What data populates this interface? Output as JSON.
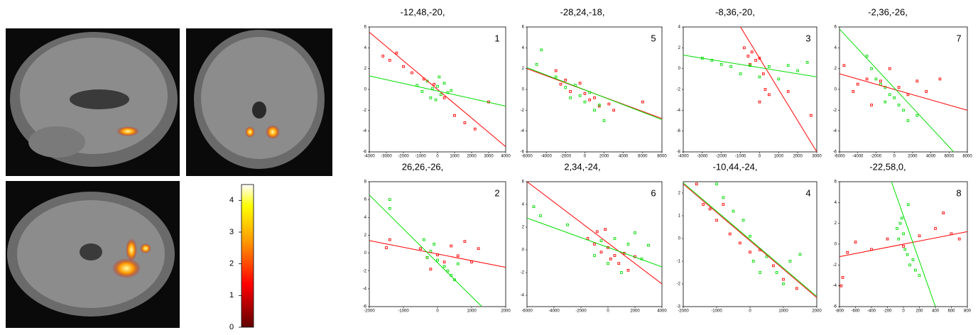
{
  "chart_data": [
    {
      "type": "scatter",
      "title": "-12,48,-20,",
      "label": "1",
      "xlim": [
        -4000,
        4000
      ],
      "xticks": [
        -4000,
        -3000,
        -2000,
        -1000,
        0,
        1000,
        2000,
        3000,
        4000
      ],
      "ylim": [
        -6,
        6
      ],
      "yticks": [
        -6,
        -4,
        -2,
        0,
        2,
        4,
        6
      ],
      "series": [
        {
          "color": "#ff0000",
          "x": [
            -3200,
            -2800,
            -2400,
            -2000,
            -1500,
            -800,
            -200,
            400,
            1000,
            1600,
            2200,
            3000
          ],
          "values": [
            3.2,
            2.8,
            3.5,
            2.2,
            1.6,
            1.0,
            0.5,
            -0.8,
            -2.5,
            -3.2,
            -3.8,
            -1.2
          ]
        },
        {
          "color": "#00dd00",
          "x": [
            -1200,
            -900,
            -600,
            -300,
            0,
            200,
            400,
            600,
            -400,
            800,
            100,
            -100
          ],
          "values": [
            0.4,
            -0.2,
            0.8,
            0.1,
            0.3,
            -0.5,
            0.6,
            -0.3,
            -0.8,
            -0.1,
            1.2,
            -1.0
          ]
        }
      ],
      "fits": [
        {
          "color": "#ff0000",
          "x": [
            -4000,
            4000
          ],
          "values": [
            5.5,
            -5.5
          ]
        },
        {
          "color": "#00dd00",
          "x": [
            -4000,
            4000
          ],
          "values": [
            1.3,
            -1.6
          ]
        }
      ]
    },
    {
      "type": "scatter",
      "title": "-28,24,-18,",
      "label": "5",
      "xlim": [
        -6000,
        8000
      ],
      "xticks": [
        -6000,
        -4000,
        -2000,
        0,
        2000,
        4000,
        6000,
        8000
      ],
      "ylim": [
        -6,
        6
      ],
      "yticks": [
        -6,
        -4,
        -2,
        0,
        2,
        4,
        6
      ],
      "series": [
        {
          "color": "#ff0000",
          "x": [
            -3000,
            -2500,
            -2000,
            -1500,
            -500,
            0,
            500,
            1000,
            1500,
            2500,
            3000,
            6000
          ],
          "values": [
            1.8,
            0.5,
            0.9,
            -0.2,
            0.6,
            -0.4,
            -1.0,
            -0.8,
            -1.6,
            -1.4,
            -2.0,
            -1.2
          ]
        },
        {
          "color": "#00dd00",
          "x": [
            -5000,
            -4500,
            -3000,
            -2000,
            -1000,
            -500,
            0,
            500,
            1000,
            1500,
            2000,
            -1500
          ],
          "values": [
            2.4,
            3.8,
            1.2,
            0.2,
            0.4,
            -0.6,
            -1.2,
            -0.3,
            -2.0,
            -1.5,
            -3.0,
            -0.8
          ]
        }
      ],
      "fits": [
        {
          "color": "#ff0000",
          "x": [
            -6000,
            8000
          ],
          "values": [
            2,
            -2.8
          ]
        },
        {
          "color": "#00dd00",
          "x": [
            -6000,
            8000
          ],
          "values": [
            2.1,
            -2.9
          ]
        }
      ]
    },
    {
      "type": "scatter",
      "title": "-8,36,-20,",
      "label": "3",
      "xlim": [
        -4000,
        3000
      ],
      "xticks": [
        -4000,
        -3000,
        -2000,
        -1000,
        0,
        1000,
        2000,
        3000
      ],
      "ylim": [
        -8,
        4
      ],
      "yticks": [
        -8,
        -6,
        -4,
        -2,
        0,
        2,
        4
      ],
      "series": [
        {
          "color": "#ff0000",
          "x": [
            -800,
            -600,
            -400,
            -200,
            0,
            -500,
            200,
            300,
            0,
            500,
            1500,
            2700
          ],
          "values": [
            2.0,
            1.2,
            1.6,
            0.8,
            1.0,
            0.4,
            -0.5,
            -2.0,
            -3.2,
            -2.5,
            -2.2,
            -4.5
          ]
        },
        {
          "color": "#00dd00",
          "x": [
            -3000,
            -2500,
            -2000,
            -1500,
            -1000,
            -500,
            0,
            500,
            1000,
            1500,
            2000,
            2500
          ],
          "values": [
            1.0,
            0.8,
            0.4,
            0.2,
            -0.5,
            0.3,
            -0.8,
            0.2,
            -1.0,
            0.3,
            -0.2,
            0.6
          ]
        }
      ],
      "fits": [
        {
          "color": "#ff0000",
          "x": [
            -1000,
            3000
          ],
          "values": [
            4,
            -8
          ]
        },
        {
          "color": "#00dd00",
          "x": [
            -4000,
            3000
          ],
          "values": [
            1.3,
            -0.8
          ]
        }
      ]
    },
    {
      "type": "scatter",
      "title": "-2,36,-26,",
      "label": "7",
      "xlim": [
        -6000,
        8000
      ],
      "xticks": [
        -6000,
        -4000,
        -2000,
        0,
        2000,
        4000,
        6000,
        8000
      ],
      "ylim": [
        -6,
        6
      ],
      "yticks": [
        -6,
        -4,
        -2,
        0,
        2,
        4,
        6
      ],
      "series": [
        {
          "color": "#ff0000",
          "x": [
            -5500,
            -4500,
            -4000,
            -3000,
            -2500,
            -1500,
            -500,
            500,
            1500,
            2500,
            3500,
            5000
          ],
          "values": [
            2.3,
            -0.2,
            0.5,
            1.0,
            -1.5,
            0.8,
            2.0,
            0.2,
            -0.5,
            0.8,
            -0.2,
            1.0
          ]
        },
        {
          "color": "#00dd00",
          "x": [
            -3000,
            -2500,
            -2000,
            -1500,
            -1000,
            -500,
            0,
            500,
            1000,
            1500,
            2500,
            -1000
          ],
          "values": [
            3.2,
            2.0,
            1.0,
            0.5,
            0.2,
            -0.5,
            -0.8,
            -1.5,
            -2.0,
            -3.0,
            -2.5,
            -1.2
          ]
        }
      ],
      "fits": [
        {
          "color": "#ff0000",
          "x": [
            -6000,
            8000
          ],
          "values": [
            1.5,
            -2
          ]
        },
        {
          "color": "#00dd00",
          "x": [
            -6000,
            6500
          ],
          "values": [
            5.8,
            -6
          ]
        }
      ]
    },
    {
      "type": "scatter",
      "title": "26,26,-26,",
      "label": "2",
      "xlim": [
        -2000,
        2000
      ],
      "xticks": [
        -2000,
        -1000,
        0,
        1000,
        2000
      ],
      "ylim": [
        -6,
        8
      ],
      "yticks": [
        -6,
        -4,
        -2,
        0,
        2,
        4,
        6,
        8
      ],
      "series": [
        {
          "color": "#ff0000",
          "x": [
            -1500,
            -1400,
            -500,
            -300,
            0,
            200,
            400,
            600,
            800,
            1000,
            1200,
            -200
          ],
          "values": [
            0.6,
            1.5,
            0.5,
            -0.5,
            -0.2,
            -1.0,
            0.8,
            -0.3,
            1.3,
            -1.0,
            0.5,
            -1.8
          ]
        },
        {
          "color": "#00dd00",
          "x": [
            -1400,
            -1400,
            -400,
            -300,
            -200,
            0,
            200,
            300,
            400,
            500,
            -100,
            600
          ],
          "values": [
            5.0,
            6.0,
            1.5,
            -0.5,
            0.2,
            -0.8,
            -1.5,
            -2.0,
            -2.5,
            -3.0,
            1.0,
            -1.2
          ]
        }
      ],
      "fits": [
        {
          "color": "#ff0000",
          "x": [
            -2000,
            2000
          ],
          "values": [
            1.4,
            -1.6
          ]
        },
        {
          "color": "#00dd00",
          "x": [
            -2000,
            1300
          ],
          "values": [
            6.5,
            -6
          ]
        }
      ]
    },
    {
      "type": "scatter",
      "title": "2,34,-24,",
      "label": "6",
      "xlim": [
        -6000,
        4000
      ],
      "xticks": [
        -6000,
        -4000,
        -2000,
        0,
        2000,
        4000
      ],
      "ylim": [
        -5,
        6
      ],
      "yticks": [
        -4,
        -2,
        0,
        2,
        4,
        6
      ],
      "series": [
        {
          "color": "#ff0000",
          "x": [
            -1500,
            -1000,
            -800,
            -500,
            0,
            200,
            500,
            800,
            1200,
            1500,
            2000,
            -200
          ],
          "values": [
            1.0,
            0.5,
            1.6,
            -0.2,
            0.2,
            -0.8,
            -0.5,
            -1.2,
            -0.3,
            -1.8,
            -0.6,
            1.8
          ]
        },
        {
          "color": "#00dd00",
          "x": [
            -5500,
            -5000,
            -3000,
            -1000,
            -500,
            0,
            500,
            1000,
            1500,
            2000,
            2500,
            3000
          ],
          "values": [
            3.8,
            3.0,
            2.2,
            -0.5,
            0.8,
            -1.2,
            1.0,
            -2.0,
            0.5,
            1.5,
            -0.8,
            0.4
          ]
        }
      ],
      "fits": [
        {
          "color": "#ff0000",
          "x": [
            -6000,
            4000
          ],
          "values": [
            6,
            -3
          ]
        },
        {
          "color": "#00dd00",
          "x": [
            -6000,
            4000
          ],
          "values": [
            2.8,
            -1.5
          ]
        }
      ]
    },
    {
      "type": "scatter",
      "title": "-10,44,-24,",
      "label": "4",
      "xlim": [
        -2000,
        2000
      ],
      "xticks": [
        -2000,
        -1000,
        0,
        1000,
        2000
      ],
      "ylim": [
        -3,
        2.5
      ],
      "yticks": [
        -3,
        -2,
        -1,
        0,
        1,
        2
      ],
      "series": [
        {
          "color": "#ff0000",
          "x": [
            -1600,
            -1400,
            -1200,
            -1000,
            -800,
            -600,
            -300,
            0,
            300,
            700,
            1000,
            1400
          ],
          "values": [
            2.4,
            1.5,
            1.3,
            0.8,
            1.5,
            0.2,
            -0.2,
            -0.6,
            -0.5,
            -1.2,
            -1.8,
            -2.2
          ]
        },
        {
          "color": "#00dd00",
          "x": [
            -1000,
            -800,
            -500,
            -200,
            0,
            100,
            300,
            500,
            800,
            1000,
            1200,
            1500
          ],
          "values": [
            2.4,
            1.8,
            1.2,
            0.8,
            0.1,
            -1.0,
            -1.5,
            -0.8,
            -1.5,
            -2.0,
            -1.0,
            -0.7
          ]
        }
      ],
      "fits": [
        {
          "color": "#ff0000",
          "x": [
            -2000,
            2000
          ],
          "values": [
            2.4,
            -2.6
          ]
        },
        {
          "color": "#00dd00",
          "x": [
            -2000,
            2000
          ],
          "values": [
            2.45,
            -2.55
          ]
        }
      ]
    },
    {
      "type": "scatter",
      "title": "-22,58,0,",
      "label": "8",
      "xlim": [
        -800,
        800
      ],
      "xticks": [
        -800,
        -600,
        -400,
        -200,
        0,
        200,
        400,
        600,
        800
      ],
      "ylim": [
        -6,
        6
      ],
      "yticks": [
        -6,
        -4,
        -2,
        0,
        2,
        4,
        6
      ],
      "series": [
        {
          "color": "#ff0000",
          "x": [
            -780,
            -760,
            -700,
            -600,
            -400,
            -200,
            0,
            200,
            400,
            500,
            600,
            700
          ],
          "values": [
            -4.0,
            -3.2,
            -0.8,
            0.2,
            -0.5,
            0.5,
            -0.2,
            0.8,
            1.5,
            3.0,
            1.0,
            0.5
          ]
        },
        {
          "color": "#00dd00",
          "x": [
            -80,
            -60,
            -40,
            -20,
            0,
            20,
            50,
            80,
            120,
            150,
            200,
            60
          ],
          "values": [
            1.5,
            0.5,
            2.0,
            2.5,
            1.0,
            -0.5,
            -1.0,
            -2.0,
            -1.5,
            -2.5,
            -3.0,
            3.8
          ]
        }
      ],
      "fits": [
        {
          "color": "#ff0000",
          "x": [
            -800,
            800
          ],
          "values": [
            -1.2,
            1.2
          ]
        },
        {
          "color": "#00dd00",
          "x": [
            -150,
            400
          ],
          "values": [
            6,
            -6
          ]
        }
      ]
    },
    {
      "type": "colorbar",
      "ylim": [
        0,
        4.5
      ],
      "yticks": [
        0,
        1,
        2,
        3,
        4
      ]
    }
  ]
}
